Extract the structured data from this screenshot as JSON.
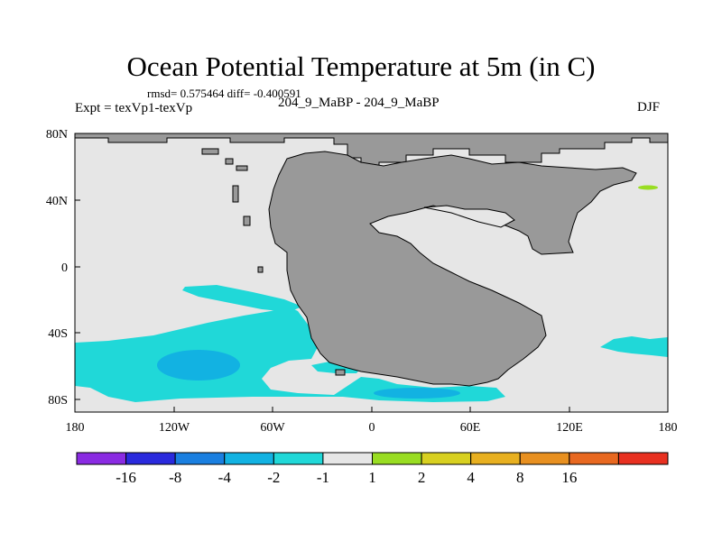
{
  "header": {
    "title": "Ocean Potential Temperature at 5m (in C)",
    "stats": "rmsd= 0.575464 diff= -0.400591",
    "expt": "Expt = texVp1-texVp",
    "case": "204_9_MaBP - 204_9_MaBP",
    "season": "DJF"
  },
  "map": {
    "lon_ticks": [
      "180",
      "120W",
      "60W",
      "0",
      "60E",
      "120E",
      "180"
    ],
    "lat_ticks": [
      "80N",
      "40N",
      "0",
      "40S",
      "80S"
    ],
    "colors": {
      "land": "#999999",
      "neutral": "#e6e6e6",
      "minus_1_2": "#20d8d8",
      "minus_2_4": "#12b2e2",
      "plus_1_2": "#99dd22"
    }
  },
  "colorbar": {
    "colors": [
      "#8a2be2",
      "#2a2add",
      "#1a7fe0",
      "#12b2e2",
      "#20d8d8",
      "#e6e6e6",
      "#99dd22",
      "#d8d020",
      "#e8b020",
      "#e89020",
      "#e86820",
      "#e83020"
    ],
    "labels": [
      "-16",
      "-8",
      "-4",
      "-2",
      "-1",
      "1",
      "2",
      "4",
      "8",
      "16"
    ]
  }
}
